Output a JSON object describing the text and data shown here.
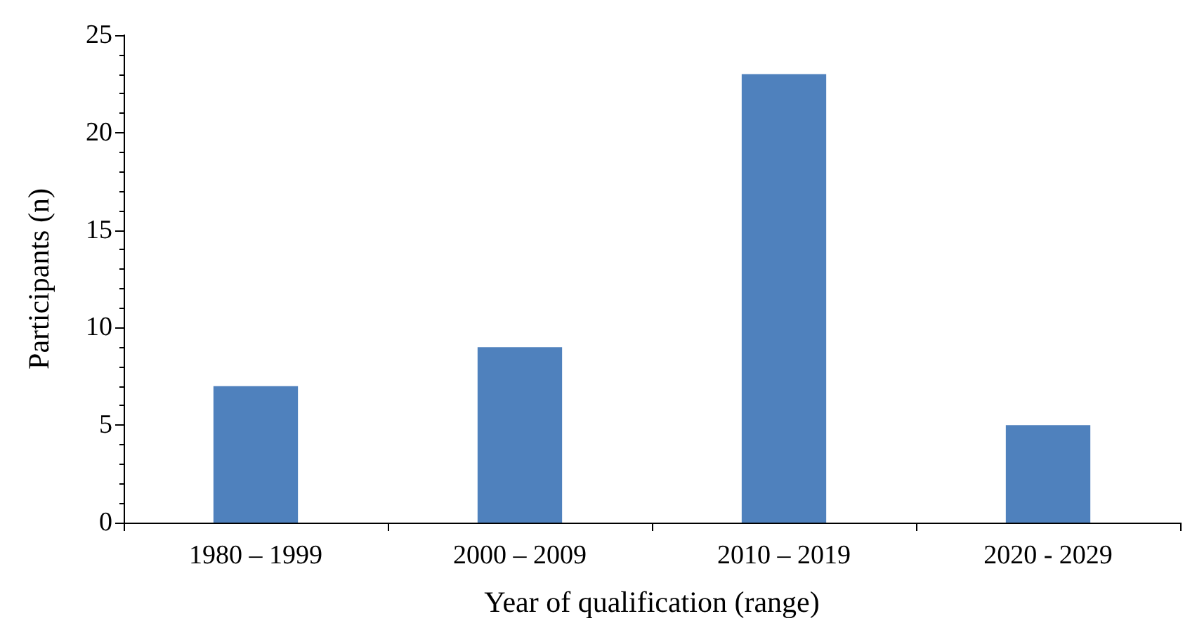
{
  "chart_data": {
    "type": "bar",
    "xlabel": "Year of qualification (range)",
    "ylabel": "Participants (n)",
    "categories": [
      "1980 – 1999",
      "2000 – 2009",
      "2010 – 2019",
      "2020 - 2029"
    ],
    "values": [
      7,
      9,
      23,
      5
    ],
    "color": "#4f81bd",
    "ylim": [
      0,
      25
    ],
    "yticks": [
      0,
      5,
      10,
      15,
      20,
      25
    ],
    "grid": false
  }
}
